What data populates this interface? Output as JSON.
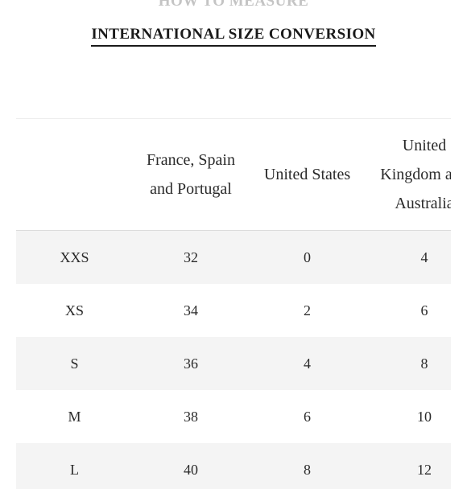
{
  "tabs": {
    "how_to_measure": "HOW TO MEASURE",
    "size_conversion": "INTERNATIONAL SIZE CONVERSION"
  },
  "table": {
    "headers": [
      "",
      [
        "France, Spain",
        "and Portugal"
      ],
      [
        "United States"
      ],
      [
        "United",
        "Kingdom and",
        "Australia"
      ]
    ],
    "rows": [
      [
        "XXS",
        "32",
        "0",
        "4"
      ],
      [
        "XS",
        "34",
        "2",
        "6"
      ],
      [
        "S",
        "36",
        "4",
        "8"
      ],
      [
        "M",
        "38",
        "6",
        "10"
      ],
      [
        "L",
        "40",
        "8",
        "12"
      ]
    ]
  }
}
